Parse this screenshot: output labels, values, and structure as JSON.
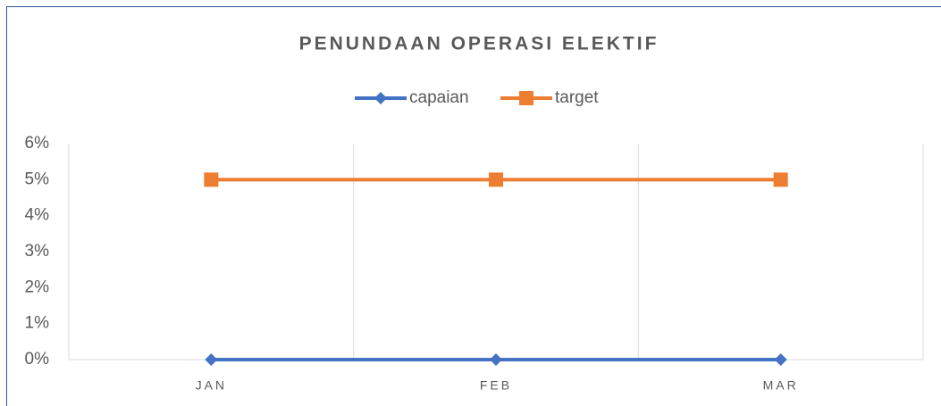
{
  "chart_data": {
    "type": "line",
    "title": "PENUNDAAN OPERASI ELEKTIF",
    "categories": [
      "JAN",
      "FEB",
      "MAR"
    ],
    "series": [
      {
        "name": "capaian",
        "color": "#4472c4",
        "marker": "diamond",
        "values": [
          0,
          0,
          0
        ]
      },
      {
        "name": "target",
        "color": "#ed7d31",
        "marker": "square",
        "values": [
          5,
          5,
          5
        ]
      }
    ],
    "ylim": [
      0,
      6
    ],
    "yticks": [
      {
        "value": 0,
        "label": "0%"
      },
      {
        "value": 1,
        "label": "1%"
      },
      {
        "value": 2,
        "label": "2%"
      },
      {
        "value": 3,
        "label": "3%"
      },
      {
        "value": 4,
        "label": "4%"
      },
      {
        "value": 5,
        "label": "5%"
      },
      {
        "value": 6,
        "label": "6%"
      }
    ],
    "legend": "top"
  }
}
